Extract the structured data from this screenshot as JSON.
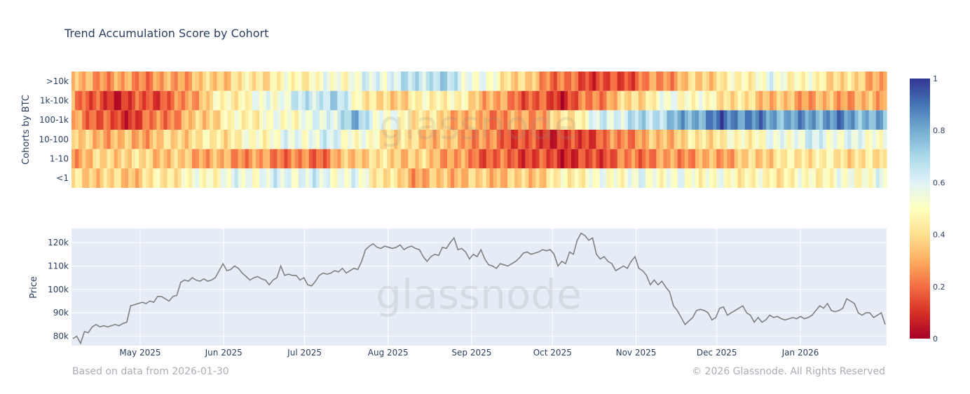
{
  "title": "Trend Accumulation Score by Cohort",
  "footer": {
    "source": "Based on data from 2026-01-30",
    "copyright": "© 2026 Glassnode. All Rights Reserved"
  },
  "watermark": "glassnode",
  "colors": {
    "plot_bg": "#e5ecf6",
    "grid": "#ffffff",
    "price_line": "#7f7f7f",
    "axis_text": "#2a3f5f",
    "colorscale": [
      "#a50026",
      "#d73027",
      "#f46d43",
      "#fdae61",
      "#fee090",
      "#ffffbf",
      "#e0f3f8",
      "#abd9e9",
      "#74add1",
      "#4575b4",
      "#313695"
    ]
  },
  "chart_data": [
    {
      "type": "heatmap",
      "ylabel": "Cohorts by BTC",
      "cohorts": [
        ">10k",
        "1k-10k",
        "100-1k",
        "10-100",
        "1-10",
        "<1"
      ],
      "zrange": [
        0,
        1
      ],
      "colorbar_ticks": [
        1,
        0.8,
        0.6,
        0.4,
        0.2,
        0
      ],
      "segments": [
        [
          [
            0.0,
            0.3
          ],
          [
            0.1,
            0.25
          ],
          [
            0.2,
            0.4
          ],
          [
            0.35,
            0.55
          ],
          [
            0.45,
            0.7
          ],
          [
            0.53,
            0.45
          ],
          [
            0.6,
            0.2
          ],
          [
            0.66,
            0.12
          ],
          [
            0.74,
            0.3
          ],
          [
            0.86,
            0.55
          ],
          [
            1.0,
            0.3
          ]
        ],
        [
          [
            0.0,
            0.35
          ],
          [
            0.02,
            0.15
          ],
          [
            0.05,
            0.1
          ],
          [
            0.13,
            0.2
          ],
          [
            0.18,
            0.45
          ],
          [
            0.22,
            0.5
          ],
          [
            0.27,
            0.6
          ],
          [
            0.32,
            0.7
          ],
          [
            0.38,
            0.35
          ],
          [
            0.46,
            0.5
          ],
          [
            0.53,
            0.25
          ],
          [
            0.6,
            0.1
          ],
          [
            0.66,
            0.3
          ],
          [
            0.74,
            0.55
          ],
          [
            0.82,
            0.4
          ],
          [
            0.89,
            0.3
          ]
        ],
        [
          [
            0.0,
            0.3
          ],
          [
            0.06,
            0.1
          ],
          [
            0.1,
            0.2
          ],
          [
            0.14,
            0.3
          ],
          [
            0.19,
            0.45
          ],
          [
            0.24,
            0.5
          ],
          [
            0.3,
            0.55
          ],
          [
            0.35,
            0.75
          ],
          [
            0.38,
            0.55
          ],
          [
            0.46,
            0.35
          ],
          [
            0.52,
            0.25
          ],
          [
            0.58,
            0.3
          ],
          [
            0.65,
            0.6
          ],
          [
            0.72,
            0.7
          ],
          [
            0.8,
            0.9
          ],
          [
            0.88,
            0.8
          ],
          [
            0.94,
            0.85
          ],
          [
            1.0,
            0.75
          ]
        ],
        [
          [
            0.0,
            0.35
          ],
          [
            0.08,
            0.3
          ],
          [
            0.14,
            0.4
          ],
          [
            0.2,
            0.45
          ],
          [
            0.26,
            0.55
          ],
          [
            0.32,
            0.6
          ],
          [
            0.4,
            0.4
          ],
          [
            0.48,
            0.3
          ],
          [
            0.55,
            0.15
          ],
          [
            0.61,
            0.1
          ],
          [
            0.68,
            0.25
          ],
          [
            0.76,
            0.4
          ],
          [
            0.84,
            0.5
          ],
          [
            0.9,
            0.6
          ],
          [
            0.97,
            0.55
          ]
        ],
        [
          [
            0.0,
            0.3
          ],
          [
            0.06,
            0.4
          ],
          [
            0.12,
            0.35
          ],
          [
            0.17,
            0.3
          ],
          [
            0.24,
            0.25
          ],
          [
            0.3,
            0.2
          ],
          [
            0.36,
            0.4
          ],
          [
            0.44,
            0.35
          ],
          [
            0.5,
            0.2
          ],
          [
            0.56,
            0.15
          ],
          [
            0.62,
            0.1
          ],
          [
            0.67,
            0.2
          ],
          [
            0.72,
            0.25
          ],
          [
            0.8,
            0.3
          ],
          [
            0.86,
            0.4
          ],
          [
            0.91,
            0.45
          ],
          [
            0.97,
            0.4
          ]
        ],
        [
          [
            0.0,
            0.4
          ],
          [
            0.07,
            0.35
          ],
          [
            0.12,
            0.45
          ],
          [
            0.2,
            0.55
          ],
          [
            0.28,
            0.6
          ],
          [
            0.35,
            0.55
          ],
          [
            0.42,
            0.3
          ],
          [
            0.48,
            0.35
          ],
          [
            0.56,
            0.35
          ],
          [
            0.63,
            0.5
          ],
          [
            0.7,
            0.55
          ],
          [
            0.8,
            0.5
          ],
          [
            0.86,
            0.45
          ],
          [
            0.93,
            0.5
          ],
          [
            1.0,
            0.55
          ]
        ]
      ]
    },
    {
      "type": "line",
      "ylabel": "Price",
      "x_ticks": [
        "May 2025",
        "Jun 2025",
        "Jul 2025",
        "Aug 2025",
        "Sep 2025",
        "Oct 2025",
        "Nov 2025",
        "Dec 2025",
        "Jan 2026"
      ],
      "y_ticks": [
        "120k",
        "110k",
        "100k",
        "90k",
        "80k"
      ],
      "y_tick_values": [
        120000,
        110000,
        100000,
        90000,
        80000
      ],
      "ylim": [
        76000,
        126000
      ],
      "series": [
        {
          "name": "Price",
          "values": [
            79000,
            80000,
            77000,
            82000,
            81500,
            84000,
            85000,
            84000,
            84500,
            84000,
            84500,
            85000,
            84500,
            85500,
            86000,
            93000,
            93500,
            94000,
            94500,
            94000,
            95000,
            94500,
            97000,
            97000,
            96000,
            95000,
            97000,
            97500,
            103000,
            104000,
            103500,
            105000,
            104000,
            103500,
            104500,
            103500,
            104000,
            105000,
            108000,
            111000,
            108000,
            108500,
            110000,
            109000,
            107000,
            105500,
            104000,
            105000,
            105500,
            104500,
            104000,
            102000,
            104000,
            105000,
            110000,
            106000,
            106500,
            106000,
            106000,
            104000,
            105000,
            102000,
            101500,
            103500,
            106000,
            107000,
            106500,
            107000,
            108000,
            107500,
            109000,
            107000,
            108000,
            109000,
            108500,
            112000,
            117000,
            118500,
            119500,
            118000,
            117500,
            118500,
            118000,
            117500,
            118000,
            119000,
            117000,
            118000,
            118500,
            117500,
            117000,
            114000,
            112000,
            114000,
            115000,
            114500,
            118000,
            117500,
            120000,
            122000,
            117000,
            117500,
            116000,
            113000,
            115000,
            114000,
            117000,
            113000,
            110500,
            110000,
            109000,
            111000,
            110500,
            110000,
            111000,
            112000,
            113500,
            115500,
            116000,
            115000,
            115500,
            116000,
            117000,
            116500,
            117000,
            115000,
            110000,
            112000,
            111000,
            116000,
            115000,
            121000,
            124000,
            123000,
            121000,
            122000,
            115000,
            113000,
            114000,
            112000,
            111000,
            108000,
            109000,
            110000,
            109000,
            112000,
            114000,
            109000,
            108000,
            106000,
            102000,
            104000,
            102000,
            103500,
            101000,
            99000,
            93000,
            91000,
            88000,
            85000,
            86500,
            88000,
            91000,
            91500,
            91000,
            90000,
            87000,
            88000,
            92000,
            92500,
            89000,
            90000,
            91000,
            92000,
            93000,
            90000,
            89000,
            86000,
            88000,
            86000,
            87000,
            89000,
            88000,
            88500,
            87500,
            87000,
            87500,
            88000,
            87500,
            88500,
            87500,
            88000,
            89000,
            91000,
            93000,
            92000,
            94000,
            91000,
            90500,
            91000,
            92000,
            96000,
            95000,
            94000,
            90000,
            89000,
            90000,
            90000,
            88000,
            89000,
            90000,
            85000
          ]
        }
      ]
    }
  ]
}
